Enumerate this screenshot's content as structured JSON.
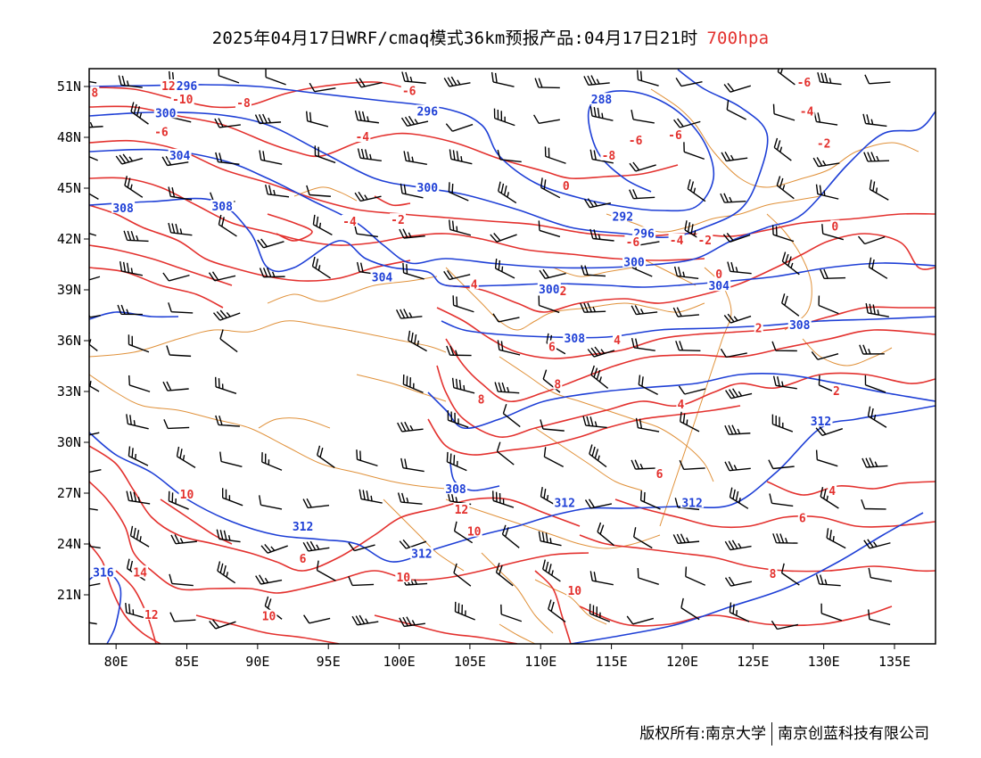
{
  "title": {
    "main": "2025年04月17日WRF/cmaq模式36km预报产品:04月17日21时",
    "level": "700hpa"
  },
  "axes": {
    "lon_labels": [
      "80E",
      "85E",
      "90E",
      "95E",
      "100E",
      "105E",
      "110E",
      "115E",
      "120E",
      "125E",
      "130E",
      "135E"
    ],
    "lon_values": [
      80,
      85,
      90,
      95,
      100,
      105,
      110,
      115,
      120,
      125,
      130,
      135
    ],
    "lat_labels": [
      "51N",
      "48N",
      "45N",
      "42N",
      "39N",
      "36N",
      "33N",
      "30N",
      "27N",
      "24N",
      "21N"
    ],
    "lat_values": [
      51,
      48,
      45,
      42,
      39,
      36,
      33,
      30,
      27,
      24,
      21
    ],
    "lon_range": [
      78,
      138
    ],
    "lat_range": [
      18,
      52
    ]
  },
  "colors": {
    "height_contour": "#1e3fd6",
    "temperature_contour": "#e3312e",
    "boundary": "#e0913a",
    "wind_barb": "#000000",
    "frame": "#000000"
  },
  "height_labels": [
    {
      "text": "296",
      "lon": 85.0,
      "lat": 51.0
    },
    {
      "text": "300",
      "lon": 83.5,
      "lat": 49.4
    },
    {
      "text": "304",
      "lon": 84.5,
      "lat": 46.9
    },
    {
      "text": "308",
      "lon": 80.5,
      "lat": 43.8
    },
    {
      "text": "308",
      "lon": 87.5,
      "lat": 43.9
    },
    {
      "text": "296",
      "lon": 102.0,
      "lat": 49.5
    },
    {
      "text": "300",
      "lon": 102.0,
      "lat": 45.0
    },
    {
      "text": "304",
      "lon": 98.8,
      "lat": 39.7
    },
    {
      "text": "288",
      "lon": 114.3,
      "lat": 50.2
    },
    {
      "text": "292",
      "lon": 115.8,
      "lat": 43.3
    },
    {
      "text": "296",
      "lon": 117.3,
      "lat": 42.3
    },
    {
      "text": "300",
      "lon": 116.6,
      "lat": 40.6
    },
    {
      "text": "300",
      "lon": 110.6,
      "lat": 39.0
    },
    {
      "text": "304",
      "lon": 122.6,
      "lat": 39.2
    },
    {
      "text": "308",
      "lon": 112.4,
      "lat": 36.1
    },
    {
      "text": "308",
      "lon": 128.3,
      "lat": 36.9
    },
    {
      "text": "312",
      "lon": 129.8,
      "lat": 31.2
    },
    {
      "text": "308",
      "lon": 104.0,
      "lat": 27.2
    },
    {
      "text": "312",
      "lon": 111.7,
      "lat": 26.4
    },
    {
      "text": "312",
      "lon": 120.7,
      "lat": 26.4
    },
    {
      "text": "312",
      "lon": 93.2,
      "lat": 25.0
    },
    {
      "text": "312",
      "lon": 101.6,
      "lat": 23.4
    },
    {
      "text": "316",
      "lon": 79.1,
      "lat": 22.3
    }
  ],
  "temperature_labels": [
    {
      "text": "12",
      "lon": 83.7,
      "lat": 51.0
    },
    {
      "text": "-10",
      "lon": 84.7,
      "lat": 50.2
    },
    {
      "text": "-8",
      "lon": 89.0,
      "lat": 50.0
    },
    {
      "text": "8",
      "lon": 78.5,
      "lat": 50.6
    },
    {
      "text": "-6",
      "lon": 100.7,
      "lat": 50.7
    },
    {
      "text": "-6",
      "lon": 83.2,
      "lat": 48.3
    },
    {
      "text": "-4",
      "lon": 97.4,
      "lat": 48.0
    },
    {
      "text": "-6",
      "lon": 116.7,
      "lat": 47.8
    },
    {
      "text": "-8",
      "lon": 114.8,
      "lat": 46.9
    },
    {
      "text": "-6",
      "lon": 119.5,
      "lat": 48.1
    },
    {
      "text": "-6",
      "lon": 128.6,
      "lat": 51.2
    },
    {
      "text": "-4",
      "lon": 128.8,
      "lat": 49.5
    },
    {
      "text": "-2",
      "lon": 130.0,
      "lat": 47.6
    },
    {
      "text": "0",
      "lon": 111.8,
      "lat": 45.1
    },
    {
      "text": "-4",
      "lon": 96.5,
      "lat": 43.0
    },
    {
      "text": "-2",
      "lon": 99.9,
      "lat": 43.1
    },
    {
      "text": "-6",
      "lon": 116.5,
      "lat": 41.8
    },
    {
      "text": "-4",
      "lon": 119.6,
      "lat": 41.9
    },
    {
      "text": "-2",
      "lon": 121.6,
      "lat": 41.9
    },
    {
      "text": "0",
      "lon": 130.8,
      "lat": 42.7
    },
    {
      "text": "0",
      "lon": 122.6,
      "lat": 39.9
    },
    {
      "text": "2",
      "lon": 111.6,
      "lat": 38.9
    },
    {
      "text": "4",
      "lon": 105.3,
      "lat": 39.3
    },
    {
      "text": "4",
      "lon": 115.4,
      "lat": 36.0
    },
    {
      "text": "6",
      "lon": 110.8,
      "lat": 35.6
    },
    {
      "text": "8",
      "lon": 111.2,
      "lat": 33.4
    },
    {
      "text": "8",
      "lon": 105.8,
      "lat": 32.5
    },
    {
      "text": "2",
      "lon": 125.4,
      "lat": 36.7
    },
    {
      "text": "2",
      "lon": 130.9,
      "lat": 33.0
    },
    {
      "text": "4",
      "lon": 119.9,
      "lat": 32.2
    },
    {
      "text": "6",
      "lon": 118.4,
      "lat": 28.1
    },
    {
      "text": "4",
      "lon": 130.6,
      "lat": 27.1
    },
    {
      "text": "6",
      "lon": 128.5,
      "lat": 25.5
    },
    {
      "text": "6",
      "lon": 93.2,
      "lat": 23.1
    },
    {
      "text": "8",
      "lon": 126.4,
      "lat": 22.2
    },
    {
      "text": "10",
      "lon": 85.0,
      "lat": 26.9
    },
    {
      "text": "12",
      "lon": 104.4,
      "lat": 26.0
    },
    {
      "text": "10",
      "lon": 105.3,
      "lat": 24.7
    },
    {
      "text": "14",
      "lon": 81.7,
      "lat": 22.3
    },
    {
      "text": "10",
      "lon": 100.3,
      "lat": 22.0
    },
    {
      "text": "10",
      "lon": 112.4,
      "lat": 21.2
    },
    {
      "text": "12",
      "lon": 82.5,
      "lat": 19.8
    },
    {
      "text": "10",
      "lon": 90.8,
      "lat": 19.7
    }
  ],
  "footer": {
    "left": "版权所有:南京大学",
    "right": "南京创蓝科技有限公司"
  }
}
